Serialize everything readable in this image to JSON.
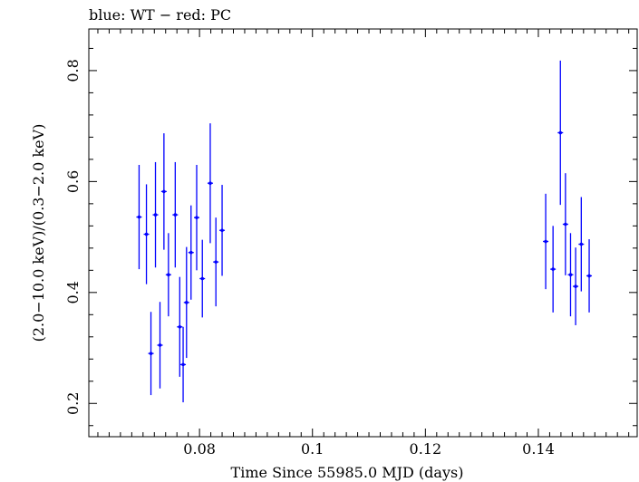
{
  "chart_data": {
    "type": "scatter",
    "title": "blue: WT − red: PC",
    "xlabel": "Time Since 55985.0 MJD (days)",
    "ylabel": "(2.0−10.0 keV)/(0.3−2.0 keV)",
    "xlim": [
      0.0604,
      0.1575
    ],
    "ylim": [
      0.14,
      0.875
    ],
    "x_ticks": [
      0.08,
      0.1,
      0.12,
      0.14
    ],
    "x_tick_labels": [
      "0.08",
      "0.1",
      "0.12",
      "0.14"
    ],
    "y_ticks": [
      0.2,
      0.4,
      0.6,
      0.8
    ],
    "y_tick_labels": [
      "0.2",
      "0.4",
      "0.6",
      "0.8"
    ],
    "grid": false,
    "series": [
      {
        "color": "#0000ff",
        "x": [
          0.0693,
          0.0706,
          0.0714,
          0.0722,
          0.073,
          0.0737,
          0.0745,
          0.0757,
          0.0765,
          0.0771,
          0.0777,
          0.0785,
          0.0795,
          0.0805,
          0.0819,
          0.0829,
          0.084,
          0.1413,
          0.1426,
          0.1439,
          0.1448,
          0.1457,
          0.1466,
          0.1476,
          0.149
        ],
        "y": [
          0.536,
          0.505,
          0.29,
          0.54,
          0.305,
          0.582,
          0.432,
          0.54,
          0.338,
          0.27,
          0.382,
          0.472,
          0.535,
          0.425,
          0.597,
          0.455,
          0.512,
          0.492,
          0.442,
          0.688,
          0.523,
          0.432,
          0.411,
          0.487,
          0.43
        ],
        "y_err": [
          0.094,
          0.09,
          0.075,
          0.095,
          0.078,
          0.105,
          0.075,
          0.095,
          0.09,
          0.068,
          0.1,
          0.085,
          0.095,
          0.07,
          0.108,
          0.08,
          0.082,
          0.086,
          0.078,
          0.13,
          0.092,
          0.075,
          0.07,
          0.085,
          0.066
        ]
      }
    ]
  }
}
